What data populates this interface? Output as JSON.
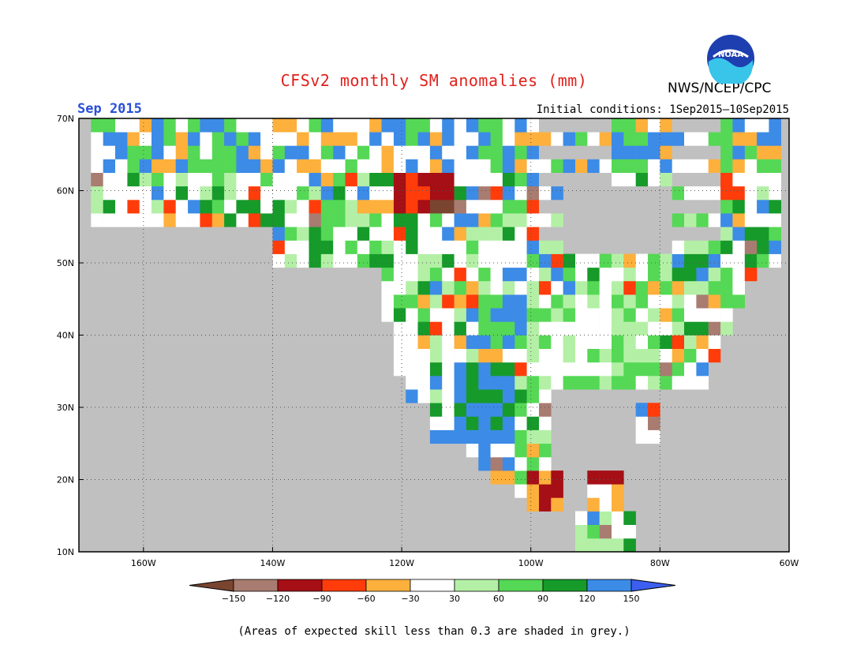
{
  "header": {
    "title": "CFSv2 monthly SM anomalies (mm)",
    "month": "Sep 2015",
    "agency": "NWS/NCEP/CPC",
    "initial_conditions": "Initial conditions: 1Sep2015—10Sep2015",
    "logo_text": "NOAA"
  },
  "map": {
    "lat_labels": [
      "70N",
      "60N",
      "50N",
      "40N",
      "30N",
      "20N",
      "10N"
    ],
    "lon_labels": [
      "160W",
      "140W",
      "120W",
      "100W",
      "80W",
      "60W"
    ],
    "extent": {
      "lon_min": -170,
      "lon_max": -60,
      "lat_min": 10,
      "lat_max": 70
    },
    "land_grey_meaning": "Areas of expected skill less than 0.3 are shaded in grey.",
    "colors": {
      "ocean": "#c0c0c0",
      "land": "#ffffff",
      "grey_land": "#c0c0c0"
    }
  },
  "legend": {
    "ticks": [
      "−150",
      "−120",
      "−90",
      "−60",
      "−30",
      "30",
      "60",
      "90",
      "120",
      "150"
    ],
    "colors": [
      "#7a4530",
      "#a87c70",
      "#a50f15",
      "#ff3c0a",
      "#fdb03c",
      "#ffffff",
      "#b3f0a6",
      "#55d855",
      "#169a2a",
      "#3c8be6",
      "#3c5ff0"
    ]
  },
  "footnote": "(Areas of expected skill less than 0.3 are shaded in grey.)"
}
